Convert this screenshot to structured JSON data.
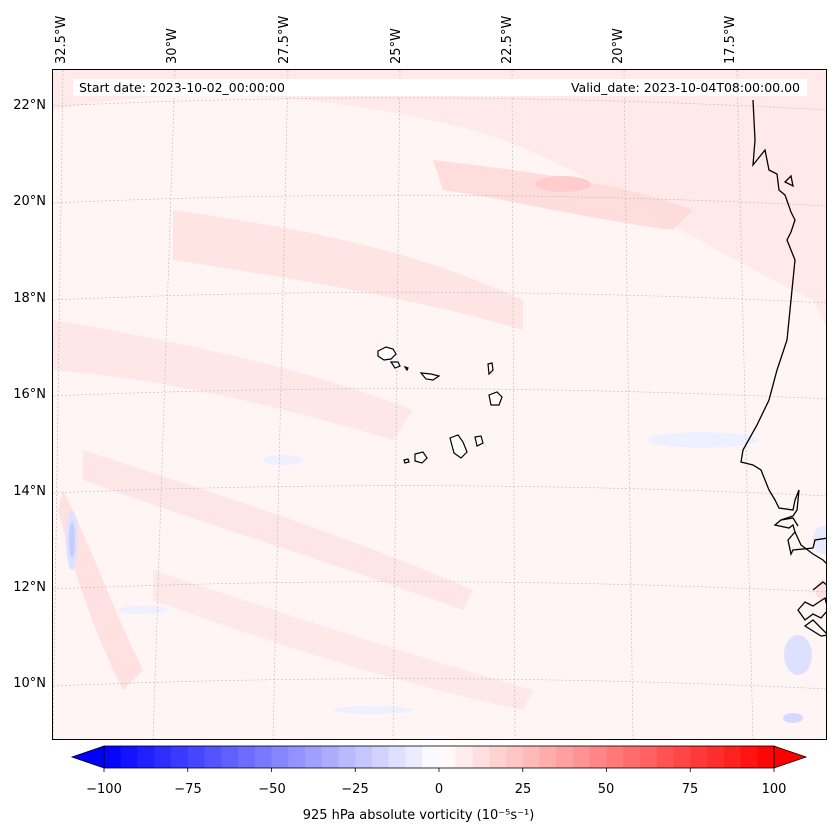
{
  "map": {
    "start_date_label": "Start date: 2023-10-02_00:00:00",
    "valid_date_label": "Valid_date: 2023-10-04T08:00:00.00",
    "longitude_labels": [
      "32.5°W",
      "30°W",
      "27.5°W",
      "25°W",
      "22.5°W",
      "20°W",
      "17.5°W"
    ],
    "latitude_labels": [
      "22°N",
      "20°N",
      "18°N",
      "16°N",
      "14°N",
      "12°N",
      "10°N"
    ],
    "field": "925 hPa absolute vorticity",
    "units_label": "(10⁻⁵s⁻¹)",
    "colormap": "bwr",
    "colors": {
      "negative": "#0000ff",
      "zero": "#ffffff",
      "positive": "#ff0000",
      "coastline": "#000000",
      "gridline": "#b0b0b0"
    }
  },
  "colorbar": {
    "min": -100,
    "max": 100,
    "tick_values": [
      -100,
      -75,
      -50,
      -25,
      0,
      25,
      50,
      75,
      100
    ],
    "tick_labels": [
      "−100",
      "−75",
      "−50",
      "−25",
      "0",
      "25",
      "50",
      "75",
      "100"
    ],
    "label": "925 hPa absolute vorticity (10⁻⁵s⁻¹)"
  }
}
